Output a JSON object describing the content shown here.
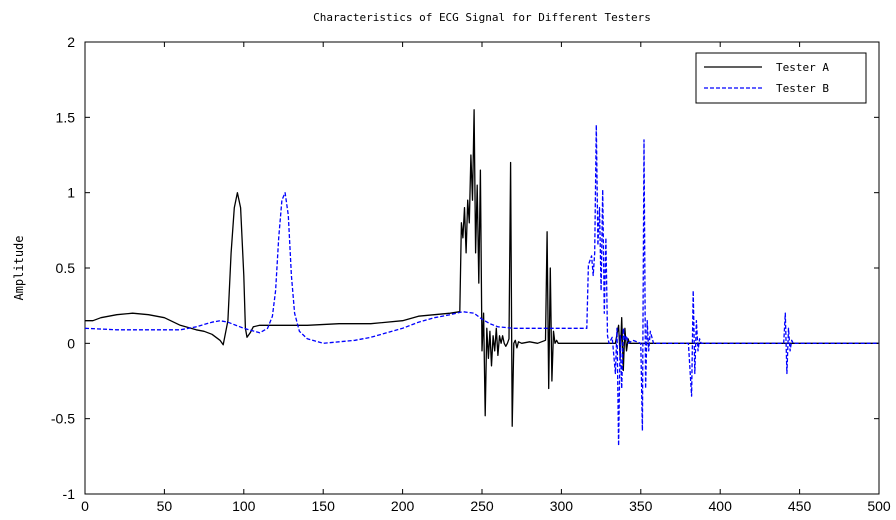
{
  "chart_data": {
    "type": "line",
    "title": "Characteristics of ECG Signal for Different Testers",
    "xlabel": "",
    "ylabel": "Amplitude",
    "xlim": [
      0,
      500
    ],
    "ylim": [
      -1,
      2
    ],
    "xticks": [
      0,
      50,
      100,
      150,
      200,
      250,
      300,
      350,
      400,
      450,
      500
    ],
    "yticks": [
      -1,
      -0.5,
      0,
      0.5,
      1,
      1.5,
      2
    ],
    "xtick_labels": [
      "0",
      "50",
      "100",
      "150",
      "200",
      "250",
      "300",
      "350",
      "400",
      "450",
      "500"
    ],
    "ytick_labels": [
      "-1",
      "-0.5",
      "0",
      "0.5",
      "1",
      "1.5",
      "2"
    ],
    "grid": false,
    "legend_position": "top-right",
    "series": [
      {
        "name": "Tester A",
        "color": "#000000",
        "style": "solid",
        "x": [
          0,
          5,
          10,
          20,
          30,
          40,
          50,
          60,
          70,
          75,
          80,
          85,
          87,
          90,
          92,
          94,
          96,
          98,
          100,
          101,
          102,
          104,
          106,
          110,
          120,
          140,
          160,
          180,
          200,
          210,
          220,
          230,
          236,
          237,
          238,
          239,
          240,
          241,
          242,
          243,
          244,
          245,
          246,
          247,
          248,
          249,
          250,
          251,
          252,
          253,
          254,
          255,
          256,
          257,
          258,
          259,
          260,
          261,
          262,
          263,
          264,
          265,
          266,
          267,
          268,
          269,
          270,
          271,
          272,
          273,
          275,
          280,
          285,
          290,
          291,
          292,
          293,
          294,
          295,
          296,
          297,
          298,
          300,
          320,
          330,
          334,
          336,
          337,
          338,
          339,
          340,
          341,
          342,
          343,
          345,
          350,
          400,
          450,
          500
        ],
        "y": [
          0.15,
          0.15,
          0.17,
          0.19,
          0.2,
          0.19,
          0.17,
          0.12,
          0.09,
          0.08,
          0.06,
          0.02,
          -0.01,
          0.15,
          0.6,
          0.9,
          1.0,
          0.9,
          0.45,
          0.1,
          0.04,
          0.07,
          0.11,
          0.12,
          0.12,
          0.12,
          0.13,
          0.13,
          0.15,
          0.18,
          0.19,
          0.2,
          0.21,
          0.8,
          0.7,
          0.9,
          0.6,
          0.95,
          0.8,
          1.25,
          0.95,
          1.55,
          0.6,
          1.05,
          0.4,
          1.15,
          -0.05,
          0.2,
          -0.48,
          0.1,
          -0.1,
          0.08,
          -0.15,
          0.05,
          -0.05,
          0.1,
          -0.08,
          0.05,
          0.0,
          0.05,
          0.0,
          -0.02,
          0.0,
          0.03,
          1.2,
          -0.55,
          0.0,
          0.02,
          -0.03,
          0.01,
          0.0,
          0.01,
          0.0,
          0.02,
          0.74,
          -0.3,
          0.5,
          -0.25,
          0.08,
          0.0,
          0.02,
          0.0,
          0.0,
          0.0,
          0.0,
          0.0,
          0.12,
          -0.1,
          0.17,
          -0.18,
          0.1,
          -0.05,
          0.03,
          0.0,
          0.0,
          0.0,
          0.0,
          0.0,
          0.0
        ]
      },
      {
        "name": "Tester B",
        "color": "#0000ff",
        "style": "dashed",
        "x": [
          0,
          20,
          40,
          60,
          70,
          80,
          85,
          90,
          100,
          110,
          115,
          118,
          120,
          122,
          124,
          126,
          128,
          130,
          132,
          135,
          140,
          150,
          160,
          170,
          180,
          190,
          200,
          210,
          220,
          230,
          238,
          245,
          250,
          255,
          260,
          270,
          280,
          300,
          316,
          317,
          319,
          320,
          321,
          322,
          323,
          324,
          325,
          326,
          327,
          328,
          329,
          330,
          332,
          334,
          335,
          336,
          337,
          338,
          339,
          340,
          341,
          342,
          345,
          350,
          351,
          352,
          353,
          354,
          355,
          356,
          358,
          360,
          380,
          382,
          383,
          384,
          385,
          386,
          387,
          388,
          390,
          440,
          441,
          442,
          443,
          444,
          445,
          446,
          450,
          500
        ],
        "y": [
          0.1,
          0.09,
          0.09,
          0.09,
          0.11,
          0.14,
          0.15,
          0.14,
          0.1,
          0.07,
          0.1,
          0.18,
          0.35,
          0.7,
          0.95,
          1.0,
          0.85,
          0.45,
          0.2,
          0.08,
          0.03,
          0.0,
          0.01,
          0.02,
          0.04,
          0.07,
          0.1,
          0.14,
          0.17,
          0.19,
          0.21,
          0.2,
          0.16,
          0.13,
          0.11,
          0.1,
          0.1,
          0.1,
          0.1,
          0.52,
          0.58,
          0.45,
          0.6,
          1.45,
          0.65,
          0.9,
          0.35,
          1.02,
          0.2,
          0.7,
          0.05,
          0.0,
          0.04,
          -0.2,
          0.1,
          -0.68,
          0.05,
          -0.3,
          0.1,
          0.02,
          0.05,
          0.0,
          0.02,
          0.0,
          -0.58,
          1.35,
          -0.3,
          0.15,
          -0.05,
          0.08,
          0.0,
          0.0,
          0.0,
          -0.35,
          0.35,
          -0.2,
          0.15,
          -0.05,
          0.03,
          0.0,
          0.0,
          0.0,
          0.2,
          -0.2,
          0.1,
          -0.05,
          0.02,
          0.0,
          0.0,
          0.0
        ]
      }
    ]
  }
}
